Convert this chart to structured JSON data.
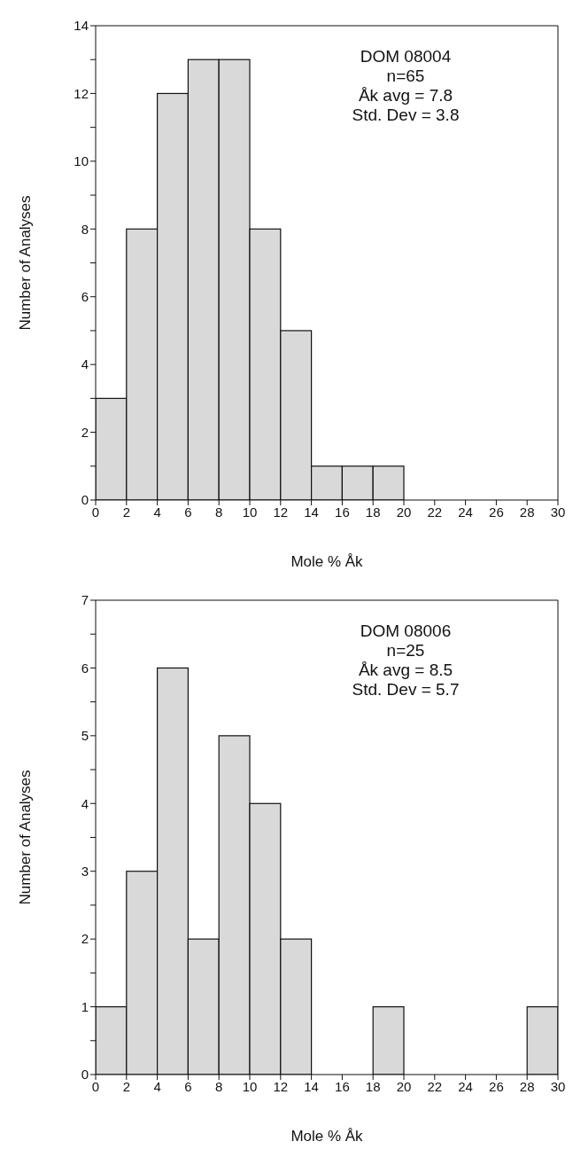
{
  "chart_data": [
    {
      "type": "histogram",
      "xlabel": "Mole % Åk",
      "ylabel": "Number of Analyses",
      "annotations": [
        "DOM 08004",
        "n=65",
        "Åk avg = 7.8",
        "Std. Dev = 3.8"
      ],
      "bins": [
        0,
        2,
        4,
        6,
        8,
        10,
        12,
        14,
        16,
        18,
        20,
        22,
        24,
        26,
        28,
        30
      ],
      "values": [
        3,
        8,
        12,
        13,
        13,
        8,
        5,
        1,
        1,
        1,
        0,
        0,
        0,
        0,
        0
      ],
      "color": "#d9d9d9",
      "xlim": [
        0,
        30
      ],
      "xticks": [
        0,
        2,
        4,
        6,
        8,
        10,
        12,
        14,
        16,
        18,
        20,
        22,
        24,
        26,
        28,
        30
      ],
      "ylim": [
        0,
        14
      ],
      "yticks": [
        0,
        {
          "value": 1,
          "label": null
        },
        2,
        {
          "value": 3,
          "label": null
        },
        4,
        {
          "value": 5,
          "label": null
        },
        6,
        {
          "value": 7,
          "label": null
        },
        8,
        {
          "value": 9,
          "label": null
        },
        10,
        {
          "value": 11,
          "label": null
        },
        12,
        {
          "value": 13,
          "label": null
        },
        14
      ]
    },
    {
      "type": "histogram",
      "xlabel": "Mole % Åk",
      "ylabel": "Number of Analyses",
      "annotations": [
        "DOM 08006",
        "n=25",
        "Åk avg = 8.5",
        "Std. Dev = 5.7"
      ],
      "bins": [
        0,
        2,
        4,
        6,
        8,
        10,
        12,
        14,
        16,
        18,
        20,
        22,
        24,
        26,
        28,
        30
      ],
      "values": [
        1,
        3,
        6,
        2,
        5,
        4,
        2,
        0,
        0,
        1,
        0,
        0,
        0,
        0,
        1
      ],
      "color": "#d9d9d9",
      "xlim": [
        0,
        30
      ],
      "xticks": [
        0,
        2,
        4,
        6,
        8,
        10,
        12,
        14,
        16,
        18,
        20,
        22,
        24,
        26,
        28,
        30
      ],
      "ylim": [
        0,
        7
      ],
      "yticks": [
        0,
        {
          "value": 0.5,
          "label": null
        },
        1,
        {
          "value": 1.5,
          "label": null
        },
        2,
        {
          "value": 2.5,
          "label": null
        },
        3,
        {
          "value": 3.5,
          "label": null
        },
        4,
        {
          "value": 4.5,
          "label": null
        },
        5,
        {
          "value": 5.5,
          "label": null
        },
        6,
        {
          "value": 6.5,
          "label": null
        },
        7
      ]
    }
  ]
}
